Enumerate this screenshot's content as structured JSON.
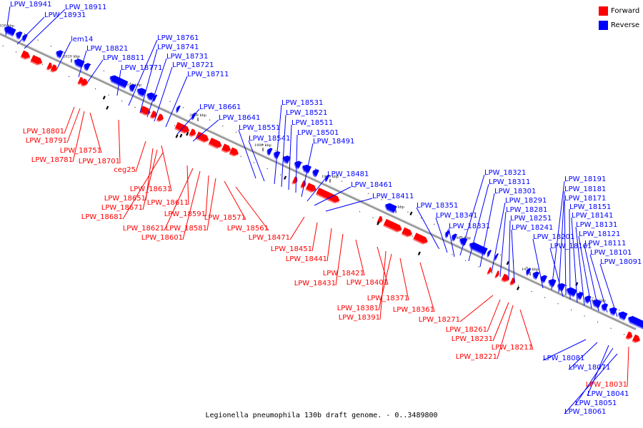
{
  "caption": "Legionella pneumophila 130b draft genome. - 0..3489800",
  "legend": [
    {
      "label": "Forward",
      "color": "#ff0000"
    },
    {
      "label": "Reverse",
      "color": "#0000ff"
    }
  ],
  "colors": {
    "forward": "#ff0000",
    "reverse": "#0000ff",
    "axis": "#9a9a9a"
  },
  "scale_labels": [
    "2030 kbp",
    "2020 kbp",
    "2010 kbp",
    "2000 kbp",
    "1990 kbp",
    "1980 kbp",
    "1970 kbp",
    "1960 kbp",
    "1950 kbp",
    "1940 kbp"
  ],
  "forward_genes": [
    "LPW_18801",
    "LPW_18791",
    "LPW_18781",
    "LPW_18751",
    "LPW_18701",
    "ceg25",
    "LPW_18631",
    "LPW_18651",
    "LPW_18671",
    "LPW_18681",
    "LPW_18611",
    "LPW_18621",
    "LPW_18601",
    "LPW_18591",
    "LPW_18581",
    "LPW_18571",
    "LPW_18561",
    "LPW_18471",
    "LPW_18451",
    "LPW_18441",
    "LPW_18431",
    "LPW_18421",
    "LPW_18401",
    "LPW_18391",
    "LPW_18381",
    "LPW_18371",
    "LPW_18361",
    "LPW_18271",
    "LPW_18261",
    "LPW_18231",
    "LPW_18221",
    "LPW_18211",
    "LPW_18031"
  ],
  "reverse_genes": [
    "LPW_18941",
    "LPW_18931",
    "LPW_18911",
    "lem14",
    "LPW_18821",
    "LPW_18811",
    "LPW_18771",
    "LPW_18761",
    "LPW_18741",
    "LPW_18731",
    "LPW_18721",
    "LPW_18711",
    "LPW_18661",
    "LPW_18641",
    "LPW_18551",
    "LPW_18541",
    "LPW_18531",
    "LPW_18521",
    "LPW_18511",
    "LPW_18501",
    "LPW_18491",
    "LPW_18481",
    "LPW_18461",
    "LPW_18411",
    "LPW_18351",
    "LPW_18341",
    "LPW_18331",
    "LPW_18321",
    "LPW_18311",
    "LPW_18301",
    "LPW_18291",
    "LPW_18281",
    "LPW_18251",
    "LPW_18241",
    "LPW_18201",
    "LPW_18191",
    "LPW_18181",
    "LPW_18171",
    "LPW_18161",
    "LPW_18151",
    "LPW_18141",
    "LPW_18131",
    "LPW_18121",
    "LPW_18111",
    "LPW_18101",
    "LPW_18091",
    "LPW_18081",
    "LPW_18071",
    "LPW_18061",
    "LPW_18051",
    "LPW_18041"
  ]
}
